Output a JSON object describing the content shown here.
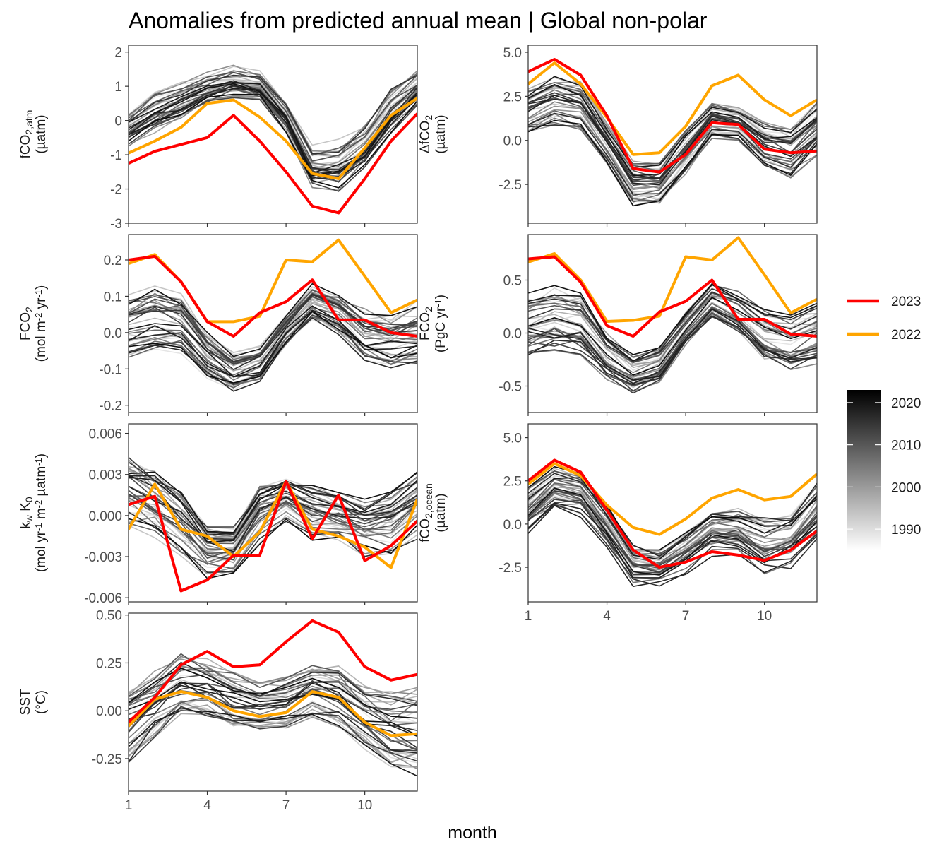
{
  "title": "Anomalies from predicted annual mean | Global non-polar",
  "xlabel": "month",
  "chart_data": {
    "type": "line",
    "x": [
      1,
      2,
      3,
      4,
      5,
      6,
      7,
      8,
      9,
      10,
      11,
      12
    ],
    "x_ticks": [
      "1",
      "4",
      "7",
      "10"
    ],
    "panels": [
      {
        "id": "fco2atm",
        "ylabel_parts": [
          [
            "fCO",
            ""
          ],
          [
            "2,atm",
            "sub"
          ]
        ],
        "ylabel_line2": [
          [
            "(µatm)",
            ""
          ]
        ],
        "ylim": [
          -3.0,
          2.2
        ],
        "y_ticks": [
          2,
          1,
          0,
          -1,
          -2,
          -3
        ],
        "y_tick_labels": [
          "2",
          "1",
          "0",
          "-1",
          "-2",
          "-3"
        ],
        "ensemble_low": [
          -0.7,
          -0.3,
          0.0,
          0.5,
          0.7,
          0.6,
          -0.3,
          -1.9,
          -2.0,
          -1.3,
          -0.3,
          0.5
        ],
        "ensemble_high": [
          0.3,
          0.9,
          1.2,
          1.4,
          1.6,
          1.5,
          0.6,
          -0.7,
          -0.6,
          -0.1,
          1.0,
          1.5
        ],
        "highlights": [
          {
            "name": "2023",
            "values": [
              -1.25,
              -0.9,
              -0.7,
              -0.5,
              0.15,
              -0.6,
              -1.5,
              -2.5,
              -2.7,
              -1.7,
              -0.6,
              0.2
            ]
          },
          {
            "name": "2022",
            "values": [
              -0.95,
              -0.6,
              -0.2,
              0.5,
              0.6,
              0.1,
              -0.6,
              -1.55,
              -1.7,
              -0.8,
              0.15,
              0.65
            ]
          }
        ]
      },
      {
        "id": "dfco2",
        "ylabel_parts": [
          [
            "ΔfCO",
            ""
          ],
          [
            "2",
            "sub"
          ]
        ],
        "ylabel_line2": [
          [
            "(µatm)",
            ""
          ]
        ],
        "ylim": [
          -4.7,
          5.4
        ],
        "y_ticks": [
          5.0,
          2.5,
          0.0,
          -2.5
        ],
        "y_tick_labels": [
          "5.0",
          "2.5",
          "0.0",
          "-2.5"
        ],
        "ensemble_low": [
          0.5,
          1.0,
          0.7,
          -1.2,
          -3.6,
          -3.5,
          -1.8,
          0.2,
          0.1,
          -1.4,
          -2.0,
          -0.7
        ],
        "ensemble_high": [
          2.8,
          3.5,
          3.2,
          0.9,
          -1.3,
          -1.4,
          0.5,
          2.0,
          1.8,
          0.9,
          0.5,
          2.0
        ],
        "highlights": [
          {
            "name": "2023",
            "values": [
              3.9,
              4.6,
              3.7,
              1.4,
              -1.6,
              -1.8,
              -0.8,
              1.0,
              0.9,
              -0.5,
              -0.7,
              -0.6
            ]
          },
          {
            "name": "2022",
            "values": [
              3.2,
              4.4,
              3.2,
              1.3,
              -0.8,
              -0.7,
              0.8,
              3.1,
              3.7,
              2.3,
              1.4,
              2.3
            ]
          }
        ]
      },
      {
        "id": "fco2_flux_area",
        "ylabel_parts": [
          [
            "FCO",
            ""
          ],
          [
            "2",
            "sub"
          ]
        ],
        "ylabel_line2": [
          [
            "(mol m",
            ""
          ],
          [
            "-2",
            "sup"
          ],
          [
            " yr",
            ""
          ],
          [
            "-1",
            "sup"
          ],
          [
            ")",
            ""
          ]
        ],
        "ylim": [
          -0.22,
          0.27
        ],
        "y_ticks": [
          0.2,
          0.1,
          0.0,
          -0.1,
          -0.2
        ],
        "y_tick_labels": [
          "0.2",
          "0.1",
          "0.0",
          "-0.1",
          "-0.2"
        ],
        "ensemble_low": [
          -0.06,
          -0.04,
          -0.05,
          -0.12,
          -0.16,
          -0.13,
          -0.03,
          0.04,
          0.0,
          -0.07,
          -0.09,
          -0.08
        ],
        "ensemble_high": [
          0.1,
          0.12,
          0.1,
          0.0,
          -0.06,
          -0.04,
          0.05,
          0.13,
          0.11,
          0.06,
          0.05,
          0.08
        ],
        "highlights": [
          {
            "name": "2023",
            "values": [
              0.2,
              0.21,
              0.14,
              0.03,
              -0.01,
              0.055,
              0.085,
              0.145,
              0.035,
              0.035,
              0.0,
              -0.01
            ]
          },
          {
            "name": "2022",
            "values": [
              0.19,
              0.215,
              0.14,
              0.03,
              0.03,
              0.045,
              0.2,
              0.195,
              0.255,
              0.155,
              0.055,
              0.09
            ]
          }
        ]
      },
      {
        "id": "fco2_flux_global",
        "ylabel_parts": [
          [
            "FCO",
            ""
          ],
          [
            "2",
            "sub"
          ]
        ],
        "ylabel_line2": [
          [
            "(PgC yr",
            ""
          ],
          [
            "-1",
            "sup"
          ],
          [
            ")",
            ""
          ]
        ],
        "ylim": [
          -0.75,
          0.93
        ],
        "y_ticks": [
          0.5,
          0.0,
          -0.5
        ],
        "y_tick_labels": [
          "0.5",
          "0.0",
          "-0.5"
        ],
        "ensemble_low": [
          -0.2,
          -0.15,
          -0.18,
          -0.42,
          -0.55,
          -0.45,
          -0.1,
          0.15,
          0.0,
          -0.25,
          -0.32,
          -0.28
        ],
        "ensemble_high": [
          0.35,
          0.42,
          0.35,
          0.0,
          -0.22,
          -0.15,
          0.18,
          0.45,
          0.38,
          0.2,
          0.17,
          0.28
        ],
        "highlights": [
          {
            "name": "2023",
            "values": [
              0.7,
              0.72,
              0.48,
              0.07,
              -0.03,
              0.2,
              0.3,
              0.5,
              0.13,
              0.13,
              -0.01,
              -0.03
            ]
          },
          {
            "name": "2022",
            "values": [
              0.67,
              0.75,
              0.5,
              0.11,
              0.12,
              0.16,
              0.72,
              0.69,
              0.9,
              0.55,
              0.19,
              0.32
            ]
          }
        ]
      },
      {
        "id": "kwk0",
        "ylabel_parts": [
          [
            "k",
            ""
          ],
          [
            "w",
            "sub"
          ],
          [
            " K",
            ""
          ],
          [
            "0",
            "sub"
          ]
        ],
        "ylabel_line2": [
          [
            "(mol yr",
            ""
          ],
          [
            "-1",
            "sup"
          ],
          [
            " m",
            ""
          ],
          [
            "-2",
            "sup"
          ],
          [
            " µatm",
            ""
          ],
          [
            "-1",
            "sup"
          ],
          [
            ")",
            ""
          ]
        ],
        "ylim": [
          -0.0063,
          0.0067
        ],
        "y_ticks": [
          0.006,
          0.003,
          0.0,
          -0.003,
          -0.006
        ],
        "y_tick_labels": [
          "0.006",
          "0.003",
          "0.000",
          "-0.003",
          "-0.006"
        ],
        "ensemble_low": [
          -0.001,
          -0.0015,
          -0.003,
          -0.0045,
          -0.0045,
          -0.002,
          -0.0005,
          -0.002,
          -0.002,
          -0.003,
          -0.003,
          -0.0015
        ],
        "ensemble_high": [
          0.004,
          0.003,
          0.0015,
          -0.001,
          -0.001,
          0.002,
          0.0025,
          0.002,
          0.0015,
          0.001,
          0.0015,
          0.003
        ],
        "highlights": [
          {
            "name": "2023",
            "values": [
              0.0008,
              0.0014,
              -0.0055,
              -0.0047,
              -0.0029,
              -0.0029,
              0.0025,
              -0.0017,
              0.0015,
              -0.0033,
              -0.0022,
              -0.0004
            ]
          },
          {
            "name": "2022",
            "values": [
              -0.001,
              0.0023,
              -0.001,
              -0.0015,
              -0.003,
              -0.0012,
              0.0025,
              -0.001,
              -0.0015,
              -0.0023,
              -0.0038,
              0.0012
            ]
          }
        ]
      },
      {
        "id": "fco2ocean",
        "ylabel_parts": [
          [
            "fCO",
            ""
          ],
          [
            "2,ocean",
            "sub"
          ]
        ],
        "ylabel_line2": [
          [
            "(µatm)",
            ""
          ]
        ],
        "ylim": [
          -4.5,
          5.8
        ],
        "y_ticks": [
          5.0,
          2.5,
          0.0,
          -2.5
        ],
        "y_tick_labels": [
          "5.0",
          "2.5",
          "0.0",
          "-2.5"
        ],
        "ensemble_low": [
          -0.5,
          0.8,
          0.5,
          -1.5,
          -3.5,
          -3.6,
          -2.8,
          -1.8,
          -2.0,
          -3.0,
          -2.8,
          -1.0
        ],
        "ensemble_high": [
          2.0,
          3.2,
          2.8,
          1.0,
          -1.3,
          -1.6,
          -0.6,
          0.5,
          0.8,
          0.2,
          0.5,
          2.2
        ],
        "highlights": [
          {
            "name": "2023",
            "values": [
              2.5,
              3.7,
              3.0,
              0.8,
              -1.5,
              -2.5,
              -2.2,
              -1.6,
              -1.8,
              -2.1,
              -1.5,
              -0.4
            ]
          },
          {
            "name": "2022",
            "values": [
              2.3,
              3.5,
              2.8,
              1.1,
              -0.2,
              -0.6,
              0.3,
              1.5,
              2.0,
              1.4,
              1.6,
              2.9
            ]
          }
        ]
      },
      {
        "id": "sst",
        "ylabel_parts": [
          [
            "SST",
            ""
          ]
        ],
        "ylabel_line2": [
          [
            "(°C)",
            ""
          ]
        ],
        "ylim": [
          -0.42,
          0.51
        ],
        "y_ticks": [
          0.5,
          0.25,
          0.0,
          -0.25
        ],
        "y_tick_labels": [
          "0.50",
          "0.25",
          "0.00",
          "-0.25"
        ],
        "ensemble_low": [
          -0.25,
          -0.12,
          0.0,
          -0.02,
          -0.08,
          -0.1,
          -0.08,
          -0.02,
          -0.08,
          -0.2,
          -0.3,
          -0.32
        ],
        "ensemble_high": [
          0.15,
          0.22,
          0.3,
          0.28,
          0.2,
          0.15,
          0.18,
          0.25,
          0.22,
          0.12,
          0.08,
          0.1
        ],
        "highlights": [
          {
            "name": "2023",
            "values": [
              -0.06,
              0.07,
              0.24,
              0.31,
              0.23,
              0.24,
              0.36,
              0.47,
              0.41,
              0.23,
              0.16,
              0.19
            ]
          },
          {
            "name": "2022",
            "values": [
              -0.08,
              0.06,
              0.1,
              0.07,
              0.0,
              -0.03,
              -0.01,
              0.1,
              0.07,
              -0.06,
              -0.13,
              -0.12
            ]
          }
        ]
      }
    ],
    "legend": {
      "placement": "right",
      "highlight_items": [
        {
          "label": "2023",
          "color": "#ff0000"
        },
        {
          "label": "2022",
          "color": "#ffa500"
        }
      ],
      "colorbar": {
        "ticks": [
          "2020",
          "2010",
          "2000",
          "1990"
        ],
        "values": [
          2020,
          2010,
          2000,
          1990
        ],
        "range": [
          1985,
          2023
        ],
        "low_color": "#ffffff",
        "high_color": "#000000"
      }
    },
    "ensemble_years": [
      1985,
      2021
    ],
    "colors": {
      "y2023": "#ff0000",
      "y2022": "#ffa500"
    }
  }
}
